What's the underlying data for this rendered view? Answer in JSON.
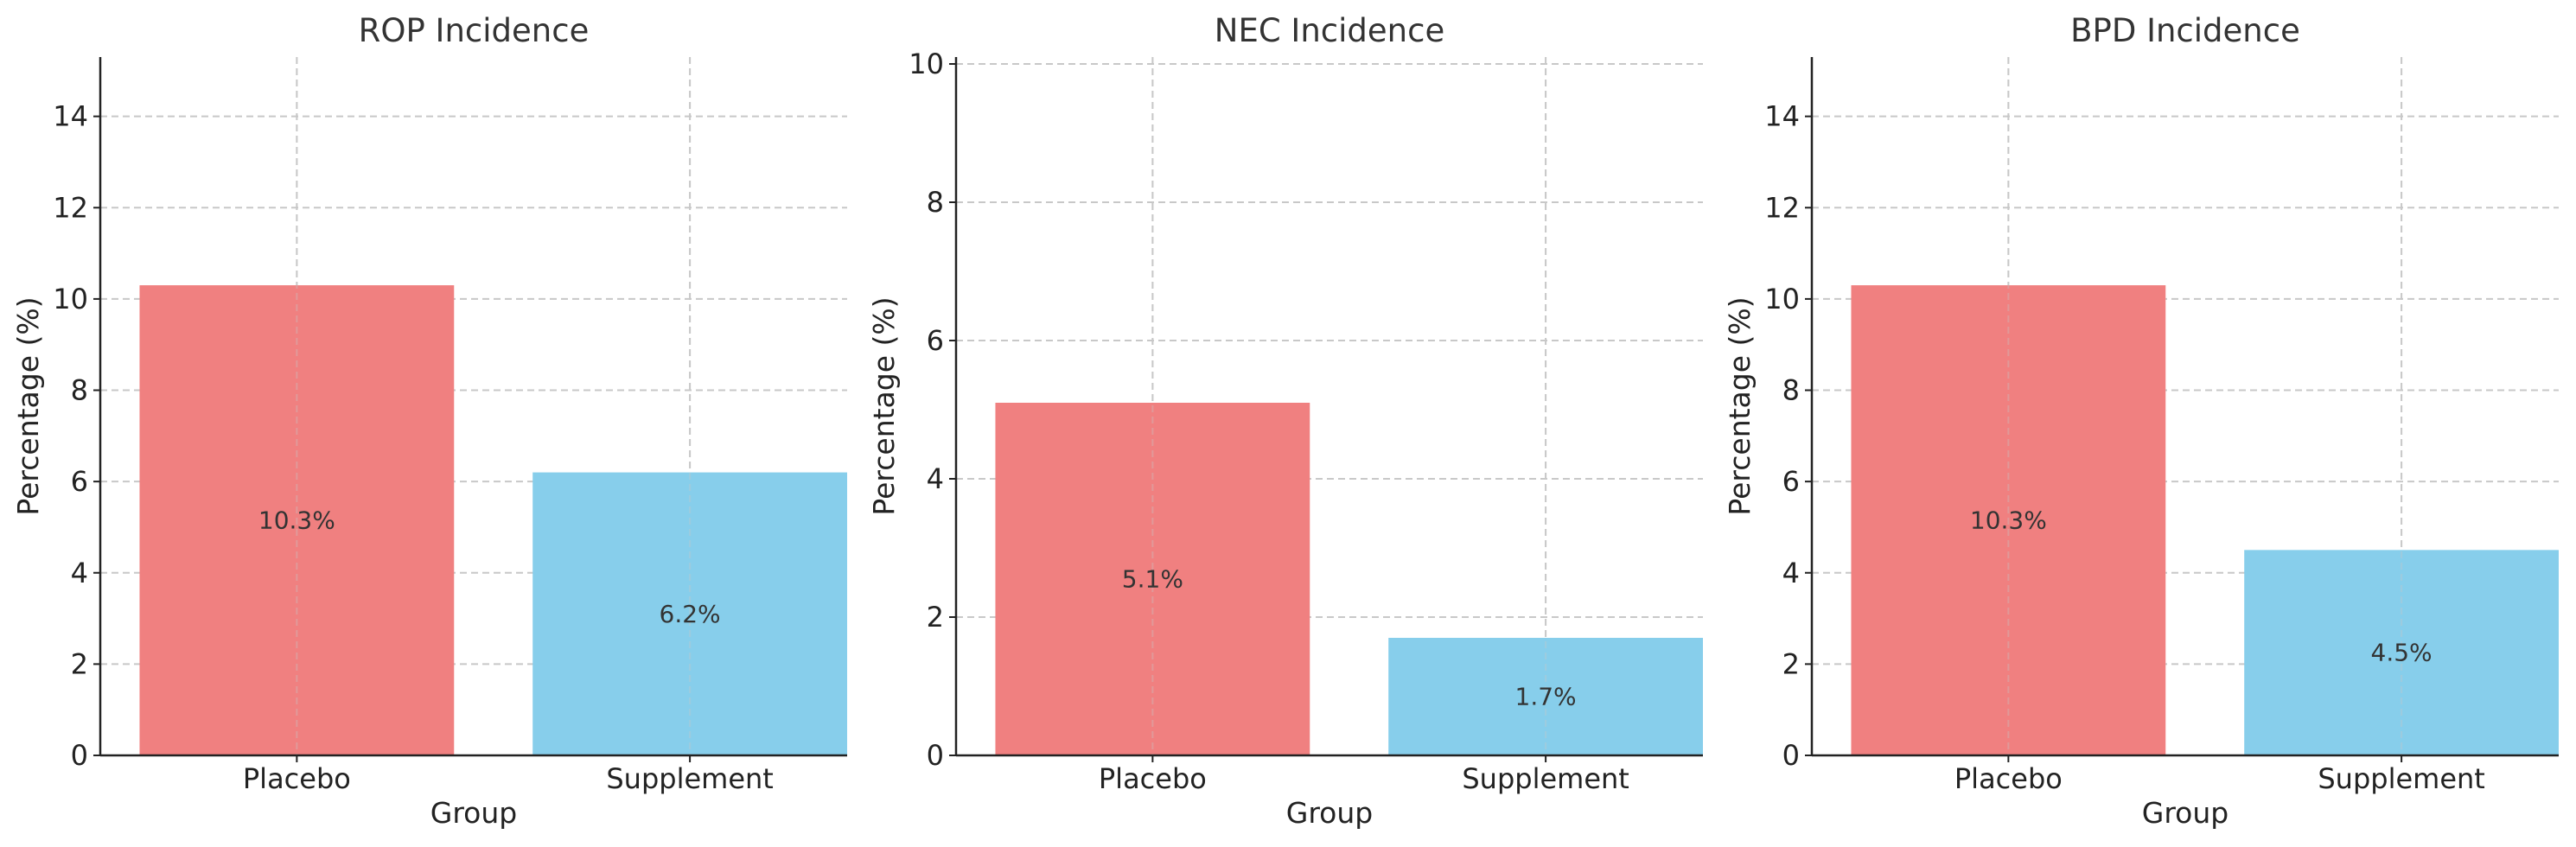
{
  "chart_data": [
    {
      "type": "bar",
      "title": "ROP Incidence",
      "xlabel": "Group",
      "ylabel": "Percentage (%)",
      "categories": [
        "Placebo",
        "Supplement"
      ],
      "values": [
        10.3,
        6.2
      ],
      "value_labels": [
        "10.3%",
        "6.2%"
      ],
      "colors": [
        "#F08080",
        "#87CEEB"
      ],
      "ylim": [
        0,
        15.3
      ],
      "yticks": [
        0,
        2,
        4,
        6,
        8,
        10,
        12,
        14
      ],
      "ytick_labels": [
        "0",
        "2",
        "4",
        "6",
        "8",
        "10",
        "12",
        "14"
      ],
      "grid": true
    },
    {
      "type": "bar",
      "title": "NEC Incidence",
      "xlabel": "Group",
      "ylabel": "Percentage (%)",
      "categories": [
        "Placebo",
        "Supplement"
      ],
      "values": [
        5.1,
        1.7
      ],
      "value_labels": [
        "5.1%",
        "1.7%"
      ],
      "colors": [
        "#F08080",
        "#87CEEB"
      ],
      "ylim": [
        0,
        10.1
      ],
      "yticks": [
        0,
        2,
        4,
        6,
        8,
        10
      ],
      "ytick_labels": [
        "0",
        "2",
        "4",
        "6",
        "8",
        "10"
      ],
      "grid": true
    },
    {
      "type": "bar",
      "title": "BPD Incidence",
      "xlabel": "Group",
      "ylabel": "Percentage (%)",
      "categories": [
        "Placebo",
        "Supplement"
      ],
      "values": [
        10.3,
        4.5
      ],
      "value_labels": [
        "10.3%",
        "4.5%"
      ],
      "colors": [
        "#F08080",
        "#87CEEB"
      ],
      "ylim": [
        0,
        15.3
      ],
      "yticks": [
        0,
        2,
        4,
        6,
        8,
        10,
        12,
        14
      ],
      "ytick_labels": [
        "0",
        "2",
        "4",
        "6",
        "8",
        "10",
        "12",
        "14"
      ],
      "grid": true
    }
  ]
}
